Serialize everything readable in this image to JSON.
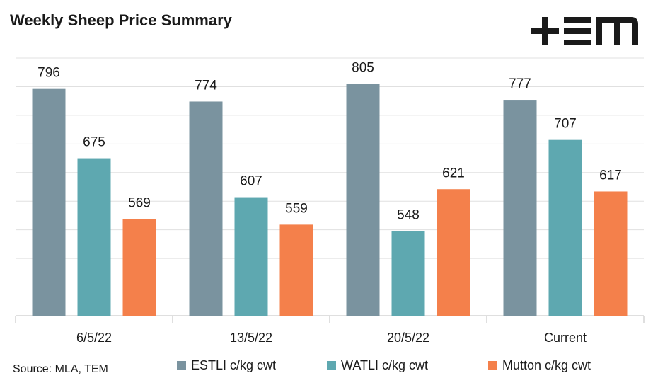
{
  "chart_data": {
    "type": "bar",
    "title": "Weekly Sheep Price Summary",
    "source": "Source: MLA, TEM",
    "categories": [
      "6/5/22",
      "13/5/22",
      "20/5/22",
      "Current"
    ],
    "series": [
      {
        "name": "ESTLI c/kg cwt",
        "color": "#7a939f",
        "values": [
          796,
          774,
          805,
          777
        ]
      },
      {
        "name": "WATLI c/kg cwt",
        "color": "#5ea8b0",
        "values": [
          675,
          607,
          548,
          707
        ]
      },
      {
        "name": "Mutton c/kg cwt",
        "color": "#f4804b",
        "values": [
          569,
          559,
          621,
          617
        ]
      }
    ],
    "ylim": [
      400,
      850
    ],
    "yticks": [
      400,
      450,
      500,
      550,
      600,
      650,
      700,
      750,
      800,
      850
    ],
    "grid": true
  }
}
